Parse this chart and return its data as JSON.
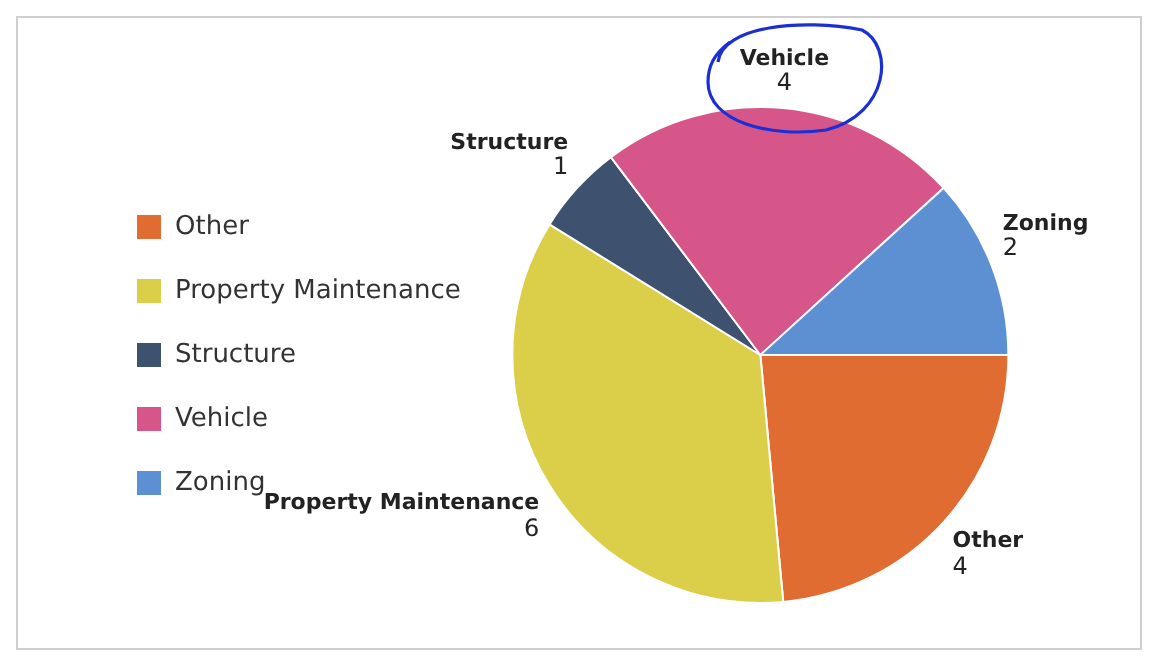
{
  "chart_data": {
    "type": "pie",
    "categories": [
      "Other",
      "Property Maintenance",
      "Structure",
      "Vehicle",
      "Zoning"
    ],
    "values": [
      4,
      6,
      1,
      4,
      2
    ],
    "colors": [
      "#e06c32",
      "#dbcf4a",
      "#3e5270",
      "#d6568a",
      "#5c90d2"
    ],
    "legend": "left",
    "data_labels": true
  }
}
